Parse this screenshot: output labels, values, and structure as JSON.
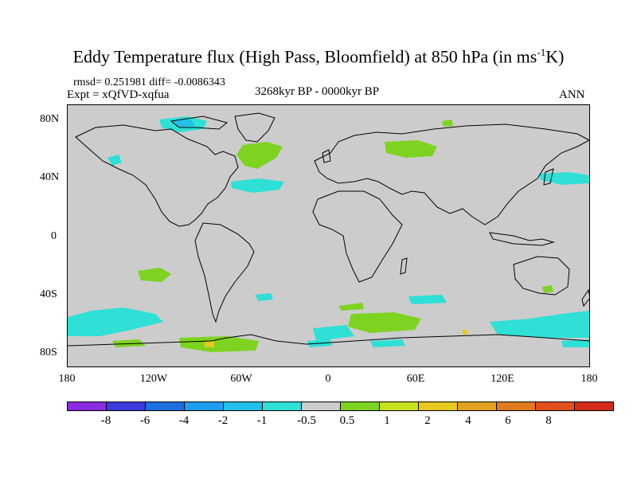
{
  "title": {
    "main": "Eddy Temperature flux (High Pass, Bloomfield) at 850 hPa (in ms",
    "superscript": "-1",
    "unit_tail": "K)"
  },
  "stats": {
    "rmsd_label": "rmsd=",
    "rmsd_value": "0.251981",
    "diff_label": "diff=",
    "diff_value": "-0.0086343"
  },
  "experiment": "Expt = xQfVD-xqfua",
  "period": "3268kyr BP - 0000kyr BP",
  "season": "ANN",
  "map": {
    "background_color": "#cccccc",
    "lat_range": [
      -90,
      90
    ],
    "lon_range": [
      -180,
      180
    ],
    "y_ticks": [
      "80N",
      "40N",
      "0",
      "40S",
      "80S"
    ],
    "x_ticks": [
      "180",
      "120W",
      "60W",
      "0",
      "60E",
      "120E",
      "180"
    ]
  },
  "colorbar": {
    "colors": [
      "#8a2be2",
      "#3b3bdd",
      "#1f6fe0",
      "#1e9ef0",
      "#22c0e8",
      "#2ee0d6",
      "#cccccc",
      "#7ed321",
      "#c8e020",
      "#e8c81e",
      "#e0a21e",
      "#e07a1e",
      "#e0501e",
      "#d42a1a"
    ],
    "labels": [
      "-8",
      "-6",
      "-4",
      "-2",
      "-1",
      "-0.5",
      "0.5",
      "1",
      "2",
      "4",
      "6",
      "8"
    ]
  }
}
